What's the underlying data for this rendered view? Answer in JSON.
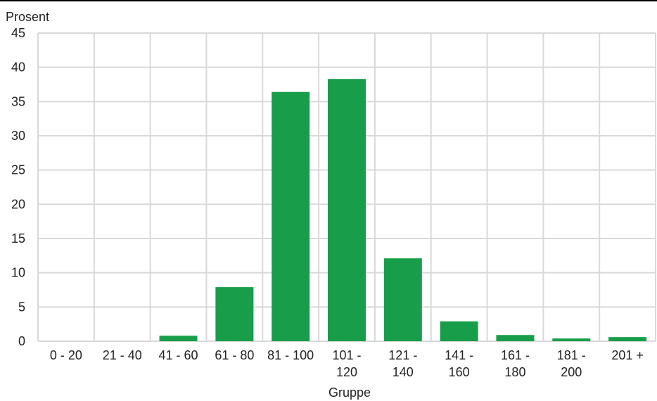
{
  "chart_data": {
    "type": "bar",
    "ylabel": "Prosent",
    "xlabel": "Gruppe",
    "ylim": [
      0,
      45
    ],
    "yticks": [
      0,
      5,
      10,
      15,
      20,
      25,
      30,
      35,
      40,
      45
    ],
    "grid": true,
    "categories": [
      "0 - 20",
      "21 - 40",
      "41 - 60",
      "61 - 80",
      "81 - 100",
      "101 - 120",
      "121 - 140",
      "141 - 160",
      "161 - 180",
      "181 - 200",
      "201 +"
    ],
    "category_label_lines": [
      [
        "0 - 20"
      ],
      [
        "21 - 40"
      ],
      [
        "41 - 60"
      ],
      [
        "61 - 80"
      ],
      [
        "81 - 100"
      ],
      [
        "101 -",
        "120"
      ],
      [
        "121 -",
        "140"
      ],
      [
        "141 -",
        "160"
      ],
      [
        "161 -",
        "180"
      ],
      [
        "181 -",
        "200"
      ],
      [
        "201 +"
      ]
    ],
    "values": [
      0,
      0,
      0.8,
      7.9,
      36.4,
      38.3,
      12.1,
      2.9,
      0.9,
      0.4,
      0.6
    ],
    "bar_color": "#189e4a",
    "grid_color": "#d9d9d9"
  }
}
